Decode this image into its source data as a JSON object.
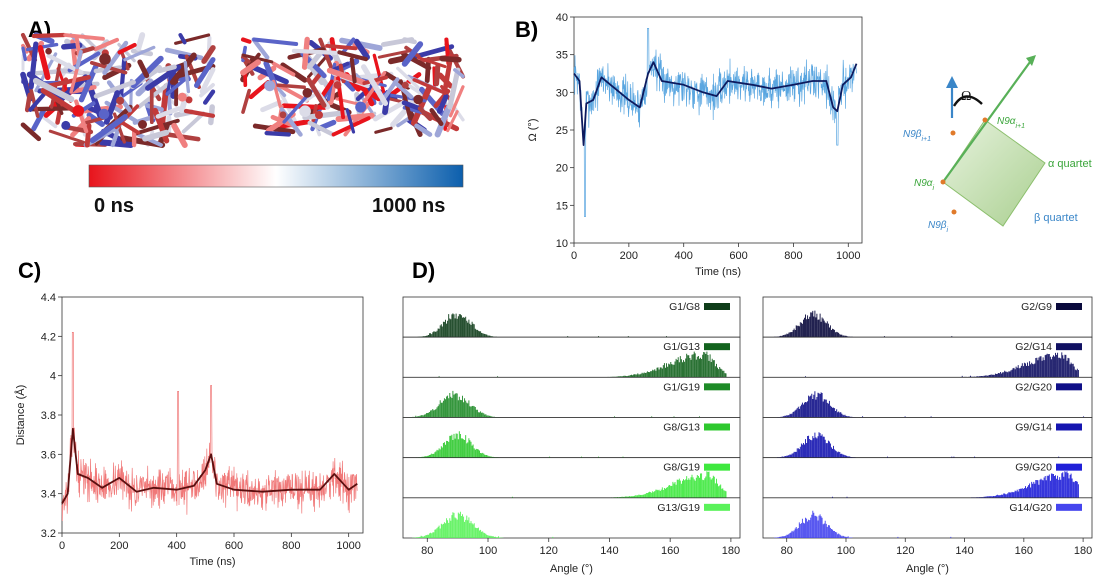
{
  "panels": {
    "a": {
      "label": "A)",
      "colorbar": {
        "start": "0 ns",
        "end": "1000 ns",
        "colors": [
          "#e8141c",
          "#ffffff",
          "#0c5fad"
        ]
      }
    },
    "b": {
      "label": "B)"
    },
    "c": {
      "label": "C)"
    },
    "d": {
      "label": "D)"
    }
  },
  "schematic": {
    "omega": "Ω",
    "n9b_i1": "N9β",
    "n9b_i1_sub": "i+1",
    "n9a_i1": "N9α",
    "n9a_i1_sub": "i+1",
    "n9a_i": "N9α",
    "n9a_i_sub": "i",
    "n9b_i": "N9β",
    "n9b_i_sub": "i",
    "alpha_quartet": "α quartet",
    "beta_quartet": "β quartet",
    "blue": "#3a86c8",
    "green": "#3aa53a"
  },
  "chart_data": [
    {
      "id": "B",
      "type": "line",
      "xlabel": "Time (ns)",
      "ylabel": "Ω (°)",
      "xlim": [
        0,
        1050
      ],
      "ylim": [
        10,
        40
      ],
      "xticks": [
        0,
        200,
        400,
        600,
        800,
        1000
      ],
      "yticks": [
        10,
        15,
        20,
        25,
        30,
        35,
        40
      ],
      "raw_color": "#5aa6e0",
      "avg_color": "#0d1a5e",
      "raw_noise": 2.2,
      "raw_spikes": [
        {
          "x": 40,
          "y": 13.5
        },
        {
          "x": 270,
          "y": 38.5
        },
        {
          "x": 960,
          "y": 23
        }
      ],
      "avg": {
        "x": [
          0,
          20,
          35,
          45,
          70,
          100,
          150,
          200,
          240,
          270,
          290,
          320,
          400,
          470,
          520,
          560,
          650,
          720,
          800,
          870,
          920,
          945,
          960,
          980,
          1010,
          1030
        ],
        "y": [
          32.5,
          31.5,
          23,
          28.5,
          29,
          32,
          30.5,
          29,
          28,
          32.5,
          34,
          31.5,
          31,
          30,
          29.5,
          31.5,
          31,
          30.5,
          31,
          31.5,
          31.5,
          28,
          27.5,
          31,
          32,
          33.8
        ]
      }
    },
    {
      "id": "C",
      "type": "line",
      "xlabel": "Time (ns)",
      "ylabel": "Distance (Å)",
      "xlim": [
        0,
        1050
      ],
      "ylim": [
        3.2,
        4.4
      ],
      "xticks": [
        0,
        200,
        400,
        600,
        800,
        1000
      ],
      "yticks": [
        3.2,
        3.4,
        3.6,
        3.8,
        4,
        4.2,
        4.4
      ],
      "raw_color": "#f07878",
      "avg_color": "#5a0f0f",
      "raw_noise": 0.08,
      "raw_spikes": [
        {
          "x": 38,
          "y": 4.22
        },
        {
          "x": 405,
          "y": 3.92
        },
        {
          "x": 520,
          "y": 3.95
        }
      ],
      "avg": {
        "x": [
          0,
          20,
          38,
          55,
          90,
          140,
          200,
          260,
          320,
          400,
          460,
          500,
          520,
          540,
          600,
          700,
          800,
          900,
          950,
          1000,
          1030
        ],
        "y": [
          3.35,
          3.4,
          3.73,
          3.5,
          3.48,
          3.43,
          3.48,
          3.41,
          3.43,
          3.42,
          3.44,
          3.52,
          3.6,
          3.45,
          3.42,
          3.41,
          3.42,
          3.42,
          3.5,
          3.42,
          3.45
        ]
      }
    },
    {
      "id": "D-left",
      "type": "bar",
      "xlabel": "Angle (°)",
      "xlim": [
        72,
        183
      ],
      "xticks": [
        80,
        100,
        120,
        140,
        160,
        180
      ],
      "series": [
        {
          "name": "G1/G8",
          "color": "#0f3d1a",
          "peak": 90,
          "width": 4.5
        },
        {
          "name": "G1/G13",
          "color": "#13631e",
          "peak": 171,
          "width": 5.0
        },
        {
          "name": "G1/G19",
          "color": "#1e8b27",
          "peak": 89,
          "width": 5.0
        },
        {
          "name": "G8/G13",
          "color": "#2ec82e",
          "peak": 90,
          "width": 4.5
        },
        {
          "name": "G8/G19",
          "color": "#3ee83e",
          "peak": 172,
          "width": 5.0
        },
        {
          "name": "G13/G19",
          "color": "#5af25a",
          "peak": 90,
          "width": 5.0
        }
      ]
    },
    {
      "id": "D-right",
      "type": "bar",
      "xlabel": "Angle (°)",
      "xlim": [
        72,
        183
      ],
      "xticks": [
        80,
        100,
        120,
        140,
        160,
        180
      ],
      "series": [
        {
          "name": "G2/G9",
          "color": "#0a0a3c",
          "peak": 89,
          "width": 4.5
        },
        {
          "name": "G2/G14",
          "color": "#101062",
          "peak": 172,
          "width": 5.0
        },
        {
          "name": "G2/G20",
          "color": "#101088",
          "peak": 90,
          "width": 4.5
        },
        {
          "name": "G9/G14",
          "color": "#1515b0",
          "peak": 90,
          "width": 4.5
        },
        {
          "name": "G9/G20",
          "color": "#2020d8",
          "peak": 174,
          "width": 5.0
        },
        {
          "name": "G14/G20",
          "color": "#4545ee",
          "peak": 89,
          "width": 4.5
        }
      ]
    }
  ]
}
